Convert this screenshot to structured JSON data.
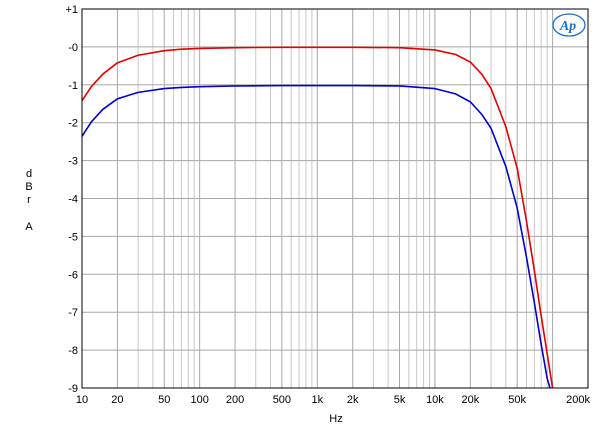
{
  "chart_data": {
    "type": "line",
    "title": "",
    "xlabel": "Hz",
    "ylabel_letters": [
      "d",
      "B",
      "r",
      "",
      "A"
    ],
    "xscale": "log",
    "xlim": [
      10,
      200000
    ],
    "ylim": [
      -9,
      1
    ],
    "grid": true,
    "x_ticks": [
      {
        "value": 10,
        "label": "10"
      },
      {
        "value": 20,
        "label": "20"
      },
      {
        "value": 50,
        "label": "50"
      },
      {
        "value": 100,
        "label": "100"
      },
      {
        "value": 200,
        "label": "200"
      },
      {
        "value": 500,
        "label": "500"
      },
      {
        "value": 1000,
        "label": "1k"
      },
      {
        "value": 2000,
        "label": "2k"
      },
      {
        "value": 5000,
        "label": "5k"
      },
      {
        "value": 10000,
        "label": "10k"
      },
      {
        "value": 20000,
        "label": "20k"
      },
      {
        "value": 50000,
        "label": "50k"
      },
      {
        "value": 200000,
        "label": "200k"
      }
    ],
    "y_ticks": [
      {
        "value": 1,
        "label": "+1"
      },
      {
        "value": 0,
        "label": "-0"
      },
      {
        "value": -1,
        "label": "-1"
      },
      {
        "value": -2,
        "label": "-2"
      },
      {
        "value": -3,
        "label": "-3"
      },
      {
        "value": -4,
        "label": "-4"
      },
      {
        "value": -5,
        "label": "-5"
      },
      {
        "value": -6,
        "label": "-6"
      },
      {
        "value": -7,
        "label": "-7"
      },
      {
        "value": -8,
        "label": "-8"
      },
      {
        "value": -9,
        "label": "-9"
      }
    ],
    "series": [
      {
        "color": "#e00000",
        "x": [
          10,
          12,
          15,
          20,
          30,
          50,
          70,
          100,
          200,
          500,
          1000,
          2000,
          5000,
          10000,
          15000,
          20000,
          25000,
          30000,
          40000,
          50000,
          60000,
          70000,
          80000,
          90000,
          100000
        ],
        "y": [
          -1.42,
          -1.05,
          -0.72,
          -0.42,
          -0.22,
          -0.1,
          -0.06,
          -0.04,
          -0.02,
          -0.01,
          -0.01,
          -0.01,
          -0.02,
          -0.08,
          -0.2,
          -0.4,
          -0.72,
          -1.1,
          -2.1,
          -3.2,
          -4.6,
          -5.9,
          -7.1,
          -8.1,
          -9.0
        ]
      },
      {
        "color": "#0000cc",
        "x": [
          10,
          12,
          15,
          20,
          30,
          50,
          70,
          100,
          200,
          500,
          1000,
          2000,
          5000,
          10000,
          15000,
          20000,
          25000,
          30000,
          40000,
          50000,
          60000,
          70000,
          80000,
          90000,
          95000
        ],
        "y": [
          -2.36,
          -1.98,
          -1.65,
          -1.37,
          -1.2,
          -1.1,
          -1.07,
          -1.05,
          -1.03,
          -1.02,
          -1.02,
          -1.02,
          -1.03,
          -1.1,
          -1.24,
          -1.45,
          -1.78,
          -2.15,
          -3.15,
          -4.25,
          -5.55,
          -6.75,
          -7.85,
          -8.75,
          -9.0
        ]
      }
    ],
    "logo_text": "Ap"
  }
}
